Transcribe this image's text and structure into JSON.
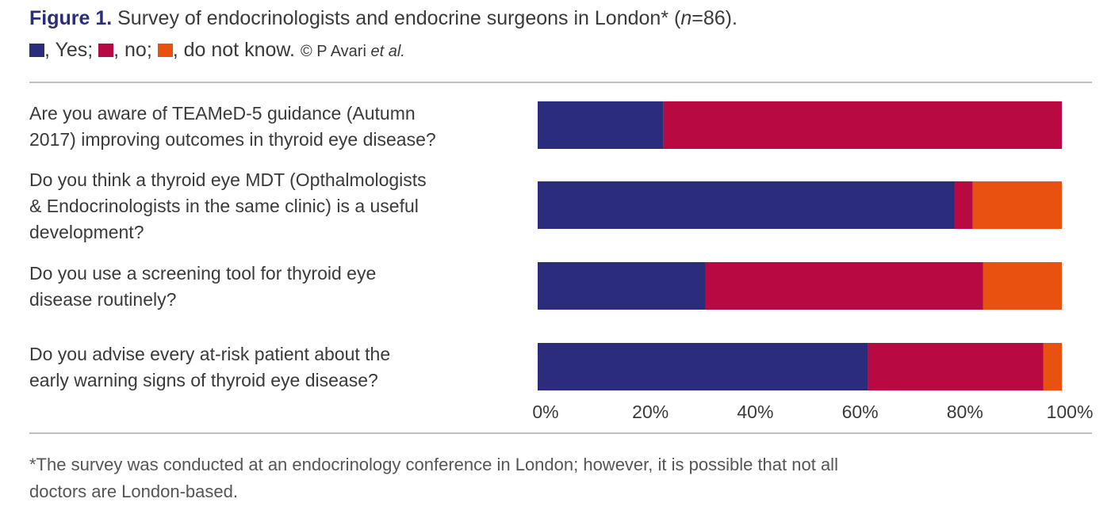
{
  "caption": {
    "figure_label": "Figure 1.",
    "title_text": " Survey of endocrinologists and endocrine surgeons in London* (",
    "n_italic": "n",
    "n_value": "=86).",
    "legend": [
      {
        "label": ", Yes;",
        "color": "#2b2d7c"
      },
      {
        "label": ", no;",
        "color": "#b80942"
      },
      {
        "label": ", do not know.",
        "color": "#e8510f"
      }
    ],
    "copyright_prefix": "© P Avari ",
    "copyright_italic": "et al."
  },
  "chart_data": {
    "type": "bar",
    "orientation": "horizontal",
    "stacked": true,
    "categories": [
      "Are you aware of TEAMeD-5 guidance (Autumn 2017) improving outcomes in thyroid eye disease?",
      "Do you think a thyroid eye MDT (Opthalmologists & Endocrinologists in the same clinic) is a useful development?",
      "Do you use a screening tool for thyroid eye disease routinely?",
      "Do you advise every at-risk patient about the early warning signs of thyroid eye disease?"
    ],
    "series": [
      {
        "name": "Yes",
        "color": "#2b2d7c",
        "values": [
          24,
          79.5,
          32,
          63
        ]
      },
      {
        "name": "No",
        "color": "#b80942",
        "values": [
          76,
          3.5,
          53,
          33.5
        ]
      },
      {
        "name": "Do not know",
        "color": "#e8510f",
        "values": [
          0,
          17,
          15,
          3.5
        ]
      }
    ],
    "xlim": [
      0,
      100
    ],
    "xticks": [
      "0%",
      "20%",
      "40%",
      "60%",
      "80%",
      "100%"
    ],
    "grid": false
  },
  "questions_lines": [
    [
      "Are you aware of TEAMeD-5 guidance (Autumn",
      "2017) improving outcomes in thyroid eye disease?"
    ],
    [
      "Do you think a thyroid eye MDT (Opthalmologists",
      "& Endocrinologists in the same clinic) is a useful",
      "development?"
    ],
    [
      "Do you use a screening tool for thyroid eye",
      "disease routinely?"
    ],
    [
      "Do you advise every at-risk patient about the",
      "early warning signs of thyroid eye disease?"
    ]
  ],
  "footnote_lines": [
    "*The survey was conducted at an endocrinology conference in London; however, it is possible that not all",
    "doctors are London-based."
  ]
}
